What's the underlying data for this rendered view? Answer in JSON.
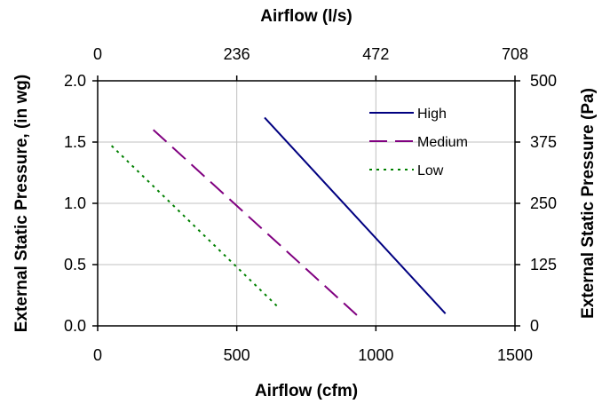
{
  "chart_data": {
    "type": "line",
    "xlabel": "Airflow (cfm)",
    "x2label": "Airflow (l/s)",
    "ylabel": "External Static Pressure, (in wg)",
    "y2label": "External Static Pressure (Pa)",
    "xlim": [
      0,
      1500
    ],
    "ylim": [
      0,
      2.0
    ],
    "x_ticks": [
      "0",
      "500",
      "1000",
      "1500"
    ],
    "x2_ticks": [
      "0",
      "236",
      "472",
      "708"
    ],
    "y_ticks": [
      "0.0",
      "0.5",
      "1.0",
      "1.5",
      "2.0"
    ],
    "y2_ticks": [
      "0",
      "125",
      "250",
      "375",
      "500"
    ],
    "grid": true,
    "legend_position": "top-right",
    "series": [
      {
        "name": "High",
        "color": "#000080",
        "dash": "solid",
        "x": [
          600,
          1250
        ],
        "y": [
          1.7,
          0.1
        ]
      },
      {
        "name": "Medium",
        "color": "#800080",
        "dash": "dashed",
        "x": [
          200,
          950
        ],
        "y": [
          1.6,
          0.05
        ]
      },
      {
        "name": "Low",
        "color": "#008000",
        "dash": "dotted",
        "x": [
          50,
          650
        ],
        "y": [
          1.47,
          0.15
        ]
      }
    ]
  }
}
